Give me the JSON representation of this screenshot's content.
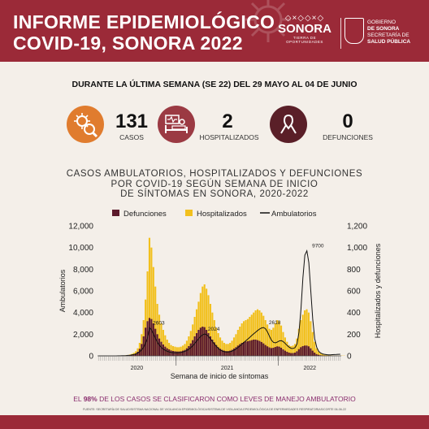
{
  "header": {
    "title_line1": "INFORME EPIDEMIOLÓGICO",
    "title_line2": "COVID-19, SONORA 2022",
    "logo_sonora": {
      "pattern": "◇×◇◇×◇",
      "word": "SONORA",
      "tagline": "TIERRA DE OPORTUNIDADES"
    },
    "logo_gob": {
      "line1": "GOBIERNO",
      "line2": "DE SONORA",
      "line3": "SECRETARÍA DE",
      "line4": "SALUD PÚBLICA"
    }
  },
  "week_title": "DURANTE LA ÚLTIMA SEMANA (SE 22) DEL 29 MAYO AL 04 DE JUNIO",
  "stats": [
    {
      "value": "131",
      "label": "CASOS",
      "icon": "virus-magnifier-icon",
      "color": "#e07c2e"
    },
    {
      "value": "2",
      "label": "HOSPITALIZADOS",
      "icon": "hospital-bed-icon",
      "color": "#9b3a43"
    },
    {
      "value": "0",
      "label": "DEFUNCIONES",
      "icon": "ribbon-icon",
      "color": "#5a1f28"
    }
  ],
  "chart_title_lines": [
    "CASOS AMBULATORIOS, HOSPITALIZADOS Y DEFUNCIONES",
    "POR COVID-19 SEGÚN SEMANA DE INICIO",
    "DE SÍNTOMAS EN SONORA, 2020-2022"
  ],
  "chart_data": {
    "type": "bar",
    "title": "CASOS AMBULATORIOS, HOSPITALIZADOS Y DEFUNCIONES POR COVID-19 SEGÚN SEMANA DE INICIO DE SÍNTOMAS EN SONORA, 2020-2022",
    "xlabel": "Semana de inicio de síntomas",
    "ylabel_left": "Ambulatorios",
    "ylabel_right": "Hospitalizados y defunciones",
    "ylim_left": [
      0,
      12000
    ],
    "ylim_right": [
      0,
      1200
    ],
    "yticks_left": [
      "0",
      "2,000",
      "4,000",
      "6,000",
      "8,000",
      "10,000",
      "12,000"
    ],
    "yticks_right": [
      "0",
      "200",
      "400",
      "600",
      "800",
      "1,000",
      "1,200"
    ],
    "year_labels": [
      "2020",
      "2021",
      "2022"
    ],
    "legend": [
      "Defunciones",
      "Hospitalizados",
      "Ambulatorios"
    ],
    "legend_placement": "top",
    "series_colors": {
      "Defunciones": "#5c1a2b",
      "Hospitalizados": "#f2c01d",
      "Ambulatorios": "#111111"
    },
    "annotations": [
      {
        "week_index": 26,
        "value": 2603,
        "text": "2603"
      },
      {
        "week_index": 54,
        "value": 2024,
        "text": "2024"
      },
      {
        "week_index": 85,
        "value": 2618,
        "text": "2618"
      },
      {
        "week_index": 107,
        "value": 9700,
        "text": "9700"
      }
    ],
    "series": [
      {
        "name": "Hospitalizados",
        "axis": "right",
        "type": "bar",
        "values": [
          0,
          0,
          0,
          0,
          0,
          0,
          0,
          0,
          0,
          1,
          1,
          2,
          3,
          4,
          6,
          8,
          12,
          18,
          28,
          42,
          70,
          120,
          200,
          330,
          520,
          780,
          1090,
          1000,
          820,
          640,
          480,
          380,
          300,
          240,
          190,
          150,
          120,
          100,
          90,
          85,
          80,
          80,
          85,
          95,
          110,
          140,
          180,
          230,
          290,
          360,
          430,
          500,
          580,
          640,
          660,
          620,
          560,
          480,
          400,
          330,
          260,
          210,
          170,
          140,
          120,
          110,
          110,
          120,
          140,
          170,
          200,
          240,
          270,
          300,
          320,
          330,
          340,
          360,
          380,
          400,
          420,
          430,
          420,
          400,
          370,
          330,
          290,
          250,
          240,
          260,
          300,
          330,
          320,
          280,
          220,
          170,
          130,
          100,
          90,
          95,
          110,
          160,
          250,
          330,
          380,
          420,
          430,
          400,
          320,
          220,
          130,
          70,
          40,
          25,
          15,
          10,
          8,
          6,
          5,
          4,
          3,
          3,
          2,
          2,
          2,
          2
        ]
      },
      {
        "name": "Defunciones",
        "axis": "right",
        "type": "bar",
        "values": [
          0,
          0,
          0,
          0,
          0,
          0,
          0,
          0,
          0,
          0,
          0,
          1,
          1,
          2,
          3,
          4,
          6,
          9,
          14,
          22,
          38,
          65,
          110,
          180,
          260,
          320,
          350,
          340,
          300,
          250,
          200,
          160,
          130,
          105,
          85,
          70,
          60,
          50,
          45,
          42,
          40,
          40,
          42,
          48,
          55,
          70,
          90,
          115,
          145,
          180,
          210,
          240,
          260,
          270,
          265,
          240,
          210,
          180,
          150,
          125,
          100,
          80,
          65,
          55,
          48,
          44,
          44,
          48,
          56,
          68,
          80,
          95,
          108,
          120,
          128,
          132,
          136,
          140,
          145,
          150,
          150,
          145,
          138,
          128,
          115,
          100,
          88,
          78,
          72,
          75,
          82,
          88,
          85,
          75,
          60,
          48,
          38,
          30,
          26,
          26,
          30,
          42,
          62,
          80,
          90,
          95,
          95,
          88,
          70,
          48,
          30,
          16,
          10,
          6,
          4,
          3,
          2,
          2,
          1,
          1,
          1,
          1,
          0,
          0,
          0,
          0
        ]
      },
      {
        "name": "Ambulatorios",
        "axis": "left",
        "type": "line",
        "values": [
          0,
          0,
          0,
          0,
          0,
          0,
          0,
          0,
          0,
          2,
          4,
          8,
          14,
          20,
          30,
          45,
          60,
          90,
          130,
          180,
          260,
          380,
          560,
          800,
          1200,
          1700,
          2603,
          2400,
          2000,
          1600,
          1250,
          980,
          780,
          620,
          500,
          420,
          360,
          320,
          300,
          290,
          290,
          300,
          320,
          360,
          420,
          500,
          620,
          760,
          940,
          1150,
          1380,
          1600,
          1800,
          1950,
          2024,
          1950,
          1780,
          1560,
          1320,
          1080,
          860,
          680,
          540,
          440,
          380,
          350,
          350,
          380,
          440,
          520,
          640,
          780,
          920,
          1080,
          1240,
          1400,
          1560,
          1720,
          1880,
          2040,
          2200,
          2350,
          2480,
          2580,
          2618,
          2500,
          2200,
          1800,
          1450,
          1250,
          1200,
          1280,
          1380,
          1400,
          1320,
          1150,
          950,
          800,
          700,
          680,
          760,
          1100,
          2200,
          4300,
          7200,
          9300,
          9700,
          8600,
          6000,
          3400,
          1600,
          800,
          420,
          260,
          180,
          140,
          110,
          100,
          100,
          110,
          120,
          130,
          140,
          150
        ]
      }
    ]
  },
  "footnote_prefix": "EL ",
  "footnote_pct": "98%",
  "footnote_suffix": " DE LOS CASOS SE CLASIFICARON COMO LEVES DE MANEJO AMBULATORIO",
  "source": "FUENTE: SECRETARÍA DE SALUD/SISTEMA NACIONAL DE VIGILANCIA EPIDEMIOLÓGICA/SISTEMA DE VIGILANCIA EPIDEMIOLÓGICA DE ENFERMEDADES RESPIRATORIAS/CORTE 06-06-22"
}
